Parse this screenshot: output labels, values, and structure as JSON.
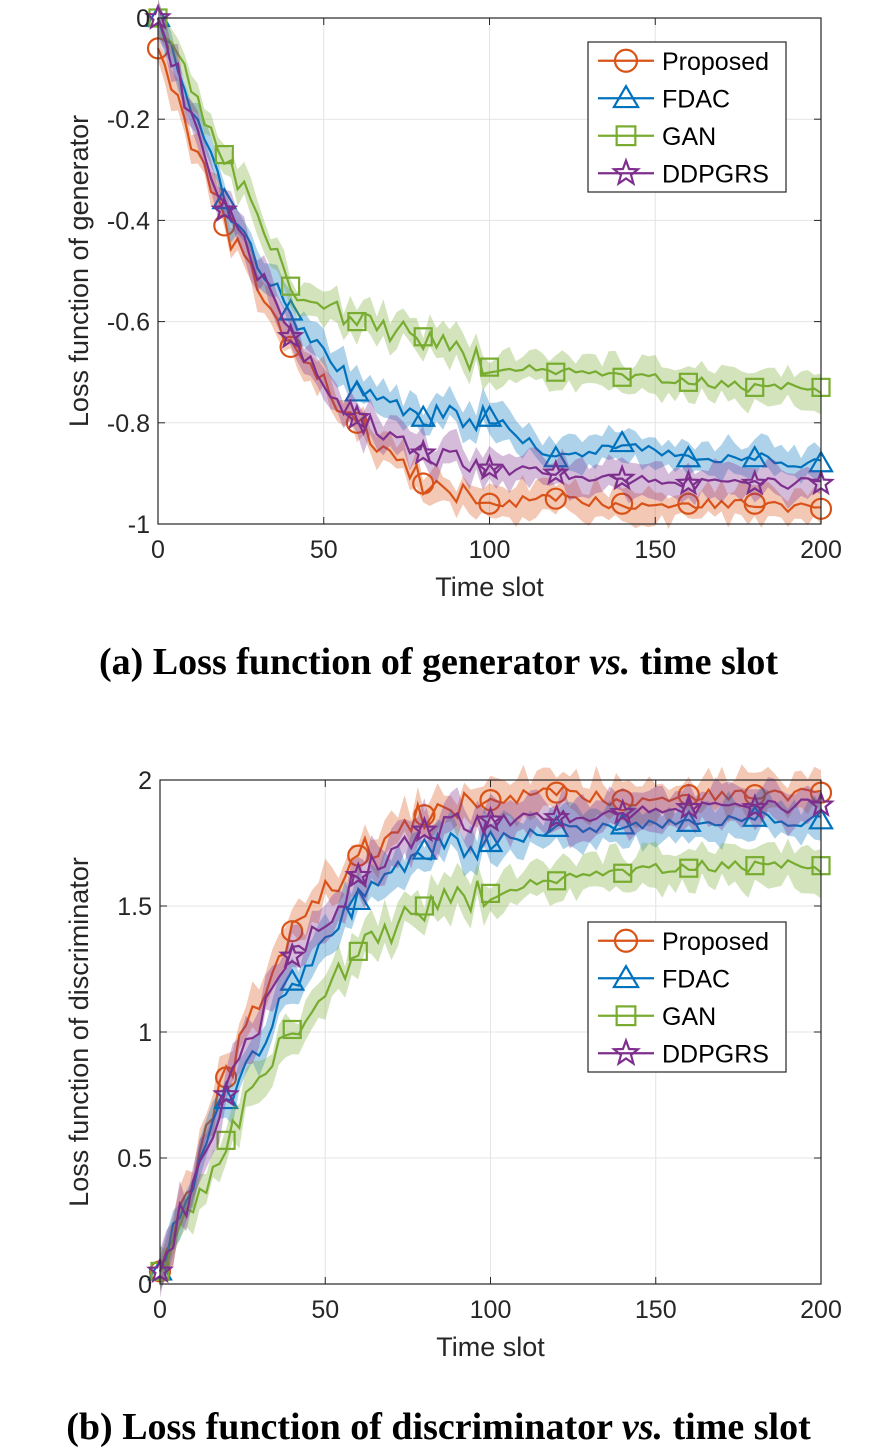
{
  "colors": {
    "Proposed": "#D95319",
    "FDAC": "#0072BD",
    "GAN": "#77AC30",
    "DDPGRS": "#7E2F8E"
  },
  "chart_data": [
    {
      "type": "line",
      "xlabel": "Time slot",
      "ylabel": "Loss function of generator",
      "xlim": [
        0,
        200
      ],
      "ylim": [
        -1,
        0
      ],
      "xticks": [
        "0",
        "50",
        "100",
        "150",
        "200"
      ],
      "yticks": [
        "0",
        "-0.2",
        "-0.4",
        "-0.6",
        "-0.8",
        "-1"
      ],
      "grid": true,
      "legend_position": "top-right",
      "x": [
        0,
        20,
        40,
        60,
        80,
        100,
        120,
        140,
        160,
        180,
        200
      ],
      "series": [
        {
          "name": "Proposed",
          "marker": "circle",
          "values": [
            -0.06,
            -0.41,
            -0.65,
            -0.8,
            -0.92,
            -0.96,
            -0.95,
            -0.96,
            -0.96,
            -0.96,
            -0.97
          ]
        },
        {
          "name": "FDAC",
          "marker": "triangle",
          "values": [
            0.0,
            -0.36,
            -0.58,
            -0.74,
            -0.79,
            -0.79,
            -0.87,
            -0.84,
            -0.87,
            -0.87,
            -0.88
          ]
        },
        {
          "name": "GAN",
          "marker": "square",
          "values": [
            0.0,
            -0.27,
            -0.53,
            -0.6,
            -0.63,
            -0.69,
            -0.7,
            -0.71,
            -0.72,
            -0.73,
            -0.73
          ]
        },
        {
          "name": "DDPGRS",
          "marker": "pentagram",
          "values": [
            0.0,
            -0.38,
            -0.63,
            -0.79,
            -0.86,
            -0.89,
            -0.9,
            -0.91,
            -0.92,
            -0.92,
            -0.92
          ]
        }
      ],
      "caption_prefix": "(a) Loss function of generator ",
      "caption_vs": "vs.",
      "caption_suffix": " time slot"
    },
    {
      "type": "line",
      "xlabel": "Time slot",
      "ylabel": "Loss function of discriminator",
      "xlim": [
        0,
        200
      ],
      "ylim": [
        0,
        2
      ],
      "xticks": [
        "0",
        "50",
        "100",
        "150",
        "200"
      ],
      "yticks": [
        "0",
        "0.5",
        "1",
        "1.5",
        "2"
      ],
      "grid": true,
      "legend_position": "center-right",
      "x": [
        0,
        20,
        40,
        60,
        80,
        100,
        120,
        140,
        160,
        180,
        200
      ],
      "series": [
        {
          "name": "Proposed",
          "marker": "circle",
          "values": [
            0.05,
            0.82,
            1.4,
            1.7,
            1.86,
            1.92,
            1.95,
            1.92,
            1.94,
            1.94,
            1.95
          ]
        },
        {
          "name": "FDAC",
          "marker": "triangle",
          "values": [
            0.05,
            0.73,
            1.2,
            1.52,
            1.72,
            1.75,
            1.81,
            1.82,
            1.83,
            1.85,
            1.84
          ]
        },
        {
          "name": "GAN",
          "marker": "square",
          "values": [
            0.05,
            0.57,
            1.01,
            1.32,
            1.5,
            1.55,
            1.6,
            1.63,
            1.65,
            1.66,
            1.66
          ]
        },
        {
          "name": "DDPGRS",
          "marker": "pentagram",
          "values": [
            0.05,
            0.75,
            1.3,
            1.62,
            1.8,
            1.84,
            1.85,
            1.87,
            1.89,
            1.89,
            1.9
          ]
        }
      ],
      "caption_prefix": "(b) Loss function of discriminator ",
      "caption_vs": "vs.",
      "caption_suffix": " time slot"
    }
  ]
}
